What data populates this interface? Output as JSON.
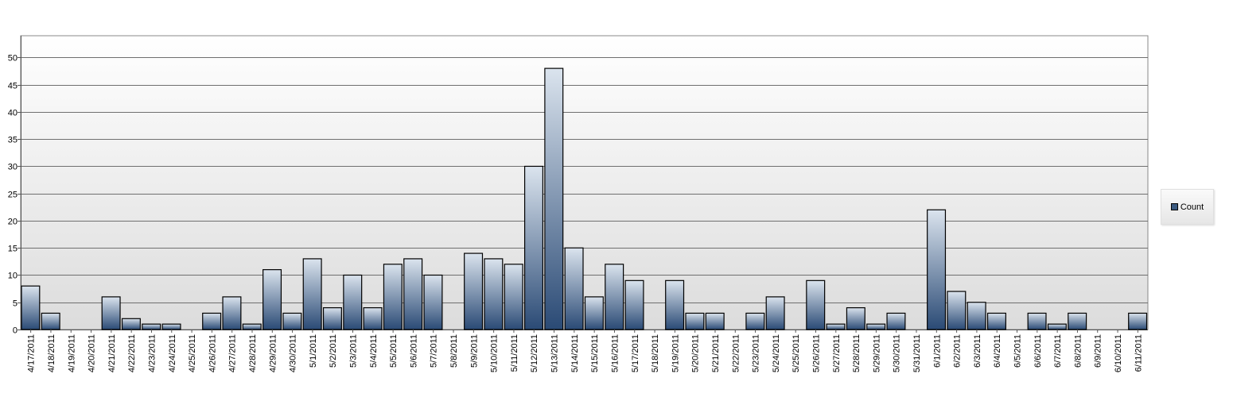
{
  "chart_data": {
    "type": "bar",
    "categories": [
      "4/17/2011",
      "4/18/2011",
      "4/19/2011",
      "4/20/2011",
      "4/21/2011",
      "4/22/2011",
      "4/23/2011",
      "4/24/2011",
      "4/25/2011",
      "4/26/2011",
      "4/27/2011",
      "4/28/2011",
      "4/29/2011",
      "4/30/2011",
      "5/1/2011",
      "5/2/2011",
      "5/3/2011",
      "5/4/2011",
      "5/5/2011",
      "5/6/2011",
      "5/7/2011",
      "5/8/2011",
      "5/9/2011",
      "5/10/2011",
      "5/11/2011",
      "5/12/2011",
      "5/13/2011",
      "5/14/2011",
      "5/15/2011",
      "5/16/2011",
      "5/17/2011",
      "5/18/2011",
      "5/19/2011",
      "5/20/2011",
      "5/21/2011",
      "5/22/2011",
      "5/23/2011",
      "5/24/2011",
      "5/25/2011",
      "5/26/2011",
      "5/27/2011",
      "5/28/2011",
      "5/29/2011",
      "5/30/2011",
      "5/31/2011",
      "6/1/2011",
      "6/2/2011",
      "6/3/2011",
      "6/4/2011",
      "6/5/2011",
      "6/6/2011",
      "6/7/2011",
      "6/8/2011",
      "6/9/2011",
      "6/10/2011",
      "6/11/2011"
    ],
    "series": [
      {
        "name": "Count",
        "values": [
          8,
          3,
          0,
          0,
          6,
          2,
          1,
          1,
          0,
          3,
          6,
          1,
          11,
          3,
          13,
          4,
          10,
          4,
          12,
          13,
          10,
          0,
          14,
          13,
          12,
          30,
          48,
          15,
          6,
          12,
          9,
          0,
          9,
          3,
          3,
          0,
          3,
          6,
          0,
          9,
          1,
          4,
          1,
          3,
          0,
          22,
          7,
          5,
          3,
          0,
          3,
          1,
          3,
          0,
          0,
          3
        ]
      }
    ],
    "yticks": [
      0,
      5,
      10,
      15,
      20,
      25,
      30,
      35,
      40,
      45,
      50
    ],
    "ylim": [
      0,
      54
    ],
    "grid": true,
    "legend_position": "right",
    "colors": {
      "bar_dark": "#2a4a75",
      "bar_light": "#dbe4ee",
      "bar_border": "#000000",
      "grid": "#6f6f6f"
    }
  },
  "legend": {
    "label": "Count"
  }
}
